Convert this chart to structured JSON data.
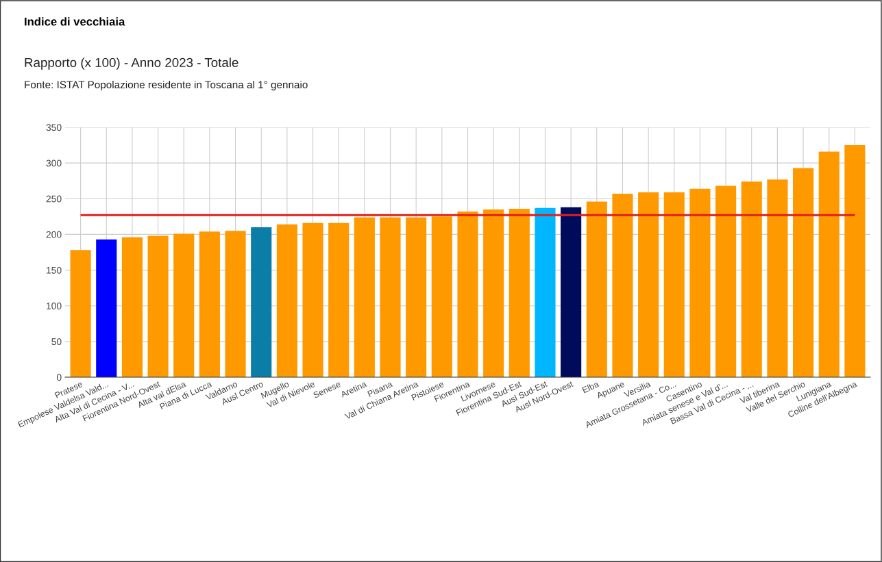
{
  "chart_data": {
    "type": "bar",
    "title": "Indice di vecchiaia",
    "subtitle": "Rapporto (x 100) - Anno 2023 - Totale",
    "annotations": [
      "Fonte: ISTAT Popolazione residente in Toscana al 1° gennaio"
    ],
    "categories": [
      "Pratese",
      "Empolese Valdelsa Vald...",
      "Alta Val di Cecina - V...",
      "Fiorentina Nord-Ovest",
      "Alta val dElsa",
      "Piana di Lucca",
      "Valdarno",
      "Ausl Centro",
      "Mugello",
      "Val di Nievole",
      "Senese",
      "Aretina",
      "Pisana",
      "Val di Chiana Aretina",
      "Pistoiese",
      "Fiorentina",
      "Livornese",
      "Fiorentina Sud-Est",
      "Ausl Sud-Est",
      "Ausl Nord-Ovest",
      "Elba",
      "Apuane",
      "Versilia",
      "Amiata Grossetana - Co...",
      "Casentino",
      "Amiata senese e Val d'...",
      "Bassa Val di Cecina - ...",
      "Val tiberina",
      "Valle del Serchio",
      "Lunigiana",
      "Colline dell'Albegna"
    ],
    "values": [
      178,
      193,
      196,
      198,
      201,
      204,
      205,
      210,
      214,
      216,
      216,
      224,
      224,
      224,
      225,
      232,
      235,
      236,
      237,
      238,
      246,
      257,
      259,
      259,
      264,
      268,
      274,
      277,
      293,
      316,
      325
    ],
    "colors": [
      "#ff9900",
      "#0000ff",
      "#ff9900",
      "#ff9900",
      "#ff9900",
      "#ff9900",
      "#ff9900",
      "#0b7ea8",
      "#ff9900",
      "#ff9900",
      "#ff9900",
      "#ff9900",
      "#ff9900",
      "#ff9900",
      "#ff9900",
      "#ff9900",
      "#ff9900",
      "#ff9900",
      "#00b7ff",
      "#000b5c",
      "#ff9900",
      "#ff9900",
      "#ff9900",
      "#ff9900",
      "#ff9900",
      "#ff9900",
      "#ff9900",
      "#ff9900",
      "#ff9900",
      "#ff9900",
      "#ff9900"
    ],
    "ref_lines": [
      {
        "axis": "y",
        "value": 227,
        "color": "#e0201a"
      }
    ],
    "ylim": [
      0,
      350
    ],
    "yticks": [
      0,
      50,
      100,
      150,
      200,
      250,
      300,
      350
    ],
    "grid": true
  }
}
